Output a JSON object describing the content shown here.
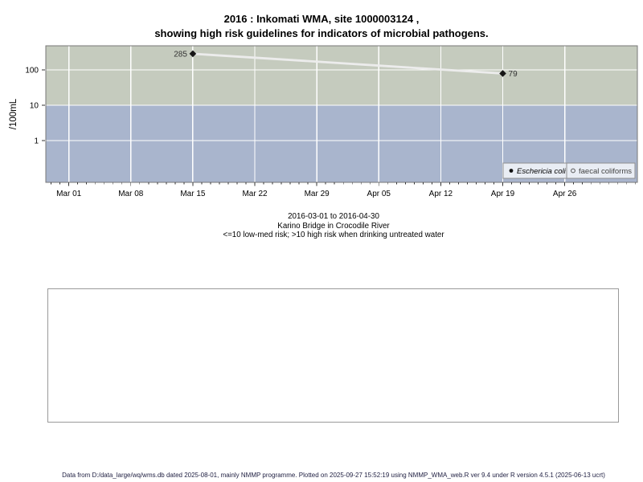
{
  "page": {
    "title_line1": "2016 : Inkomati WMA, site 1000003124 ,",
    "title_line2": "showing high risk guidelines for indicators of microbial pathogens.",
    "caption_line1": "2016-03-01 to 2016-04-30",
    "caption_line2": "Karino Bridge in Crocodile River",
    "caption_line3": "<=10 low-med risk; >10 high risk when drinking untreated water",
    "footer": "Data from D:/data_large/wq/wms.db dated 2025-08-01, mainly NMMP programme. Plotted on 2025-09-27 15:52:19 using NMMP_WMA_web.R ver 9.4 under R version 4.5.1 (2025-06-13 ucrt)"
  },
  "chart_data": {
    "type": "line",
    "title": "2016 : Inkomati WMA, site 1000003124 , showing high risk guidelines for indicators of microbial pathogens.",
    "xlabel": "",
    "ylabel": "/100mL",
    "y_scale": "log10",
    "y_ticks": [
      1,
      10,
      100
    ],
    "ylim_log10": [
      -1.18,
      2.68
    ],
    "x_tick_labels": [
      "Mar 01",
      "Mar 08",
      "Mar 15",
      "Mar 22",
      "Mar 29",
      "Apr 05",
      "Apr 12",
      "Apr 19",
      "Apr 26"
    ],
    "x_tick_days": [
      0,
      7,
      14,
      21,
      28,
      35,
      42,
      49,
      56
    ],
    "x_minor_tick_interval_days": 1,
    "xlim_days": [
      -2.6,
      64.2
    ],
    "date_range": "2016-03-01 to 2016-04-30",
    "risk_threshold": 10,
    "risk_note": "<=10 low-med risk; >10 high risk when drinking untreated water",
    "grid": "white-on-bands",
    "legend_position": "bottom-right-inside",
    "bands": {
      "high_risk_color": "#c5cbbe",
      "low_med_risk_color": "#a9b5cd"
    },
    "line_color": "#ececec",
    "point_color": "#161616",
    "series": [
      {
        "name": "Eschericia coli",
        "marker": "filled-diamond",
        "points": [
          {
            "date": "Mar 15",
            "day": 14,
            "value": 285,
            "label": "285",
            "label_side": "left"
          },
          {
            "date": "Apr 19",
            "day": 49,
            "value": 79,
            "label": "79",
            "label_side": "right"
          }
        ]
      },
      {
        "name": "faecal coliforms",
        "marker": "open-circle",
        "points": []
      }
    ],
    "legend": [
      {
        "label": "Eschericia coli",
        "marker": "filled-circle",
        "italic": true
      },
      {
        "label": "faecal coliforms",
        "marker": "open-circle",
        "italic": false
      }
    ]
  }
}
